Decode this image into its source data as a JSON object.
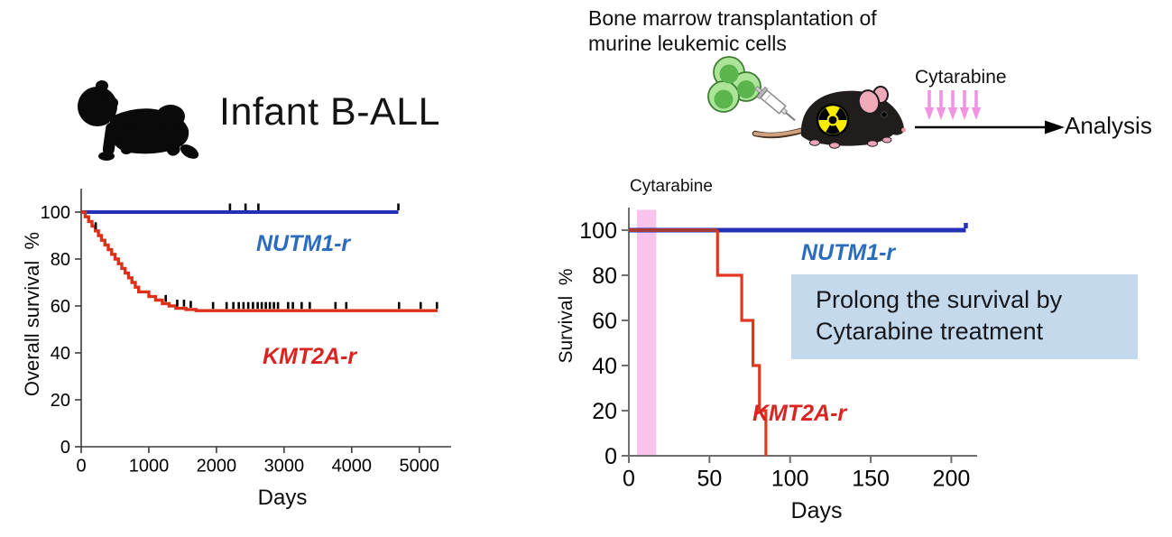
{
  "left_panel": {
    "icon": "baby-icon",
    "title": "Infant B-ALL"
  },
  "right_panel": {
    "heading_line1": "Bone marrow transplantation of",
    "heading_line2": "murine leukemic cells",
    "illustration": {
      "cells_icon": "leukemic-cells-icon",
      "syringe_icon": "syringe-icon",
      "mouse_icon": "mouse-icon",
      "radiation_icon": "radiation-hazard-icon",
      "colors": {
        "cell_outer": "#ace598",
        "cell_nucleus": "#5cb44d",
        "cell_border": "#3f7d35",
        "mouse_body": "#221d1d",
        "ear_pink": "#f2aabb",
        "tail_tan": "#cfa17e",
        "radiation_yellow": "#f8ec00"
      }
    },
    "treatment_label": "Cytarabine",
    "treatment_arrow_color": "#f293e2",
    "analysis_label": "Analysis",
    "callout": {
      "line1": "Prolong the survival by",
      "line2": "Cytarabine treatment",
      "bg": "#c5d9ed"
    }
  },
  "chart_data": [
    {
      "id": "infant-ball-overall-survival",
      "type": "line",
      "subtype": "kaplan-meier-step",
      "title": "Infant B-ALL overall survival",
      "xlabel": "Days",
      "ylabel": "Overall survival  %",
      "xlim": [
        0,
        5470
      ],
      "ylim": [
        0,
        110
      ],
      "xticks": [
        0,
        1000,
        2000,
        3000,
        4000,
        5000
      ],
      "yticks": [
        0,
        20,
        40,
        60,
        80,
        100
      ],
      "grid": false,
      "legend": "inline-annotations",
      "series": [
        {
          "name": "NUTM1-r",
          "color": "#2430b6",
          "line_width": 4,
          "start": [
            0,
            100
          ],
          "drops": [],
          "end_day": 4690,
          "censor_days": [
            2200,
            2430,
            2620,
            4690
          ]
        },
        {
          "name": "KMT2A-r",
          "color": "#dc3018",
          "line_width": 3.4,
          "start": [
            0,
            100
          ],
          "drops": [
            [
              60,
              98
            ],
            [
              110,
              96
            ],
            [
              160,
              94
            ],
            [
              210,
              92
            ],
            [
              255,
              90
            ],
            [
              300,
              88
            ],
            [
              350,
              86
            ],
            [
              400,
              84
            ],
            [
              450,
              82
            ],
            [
              500,
              80
            ],
            [
              550,
              78
            ],
            [
              600,
              76
            ],
            [
              650,
              74
            ],
            [
              700,
              72
            ],
            [
              750,
              70
            ],
            [
              800,
              68
            ],
            [
              850,
              66
            ],
            [
              1000,
              64
            ],
            [
              1100,
              62.5
            ],
            [
              1200,
              61
            ],
            [
              1300,
              60
            ],
            [
              1400,
              59
            ],
            [
              1550,
              58.5
            ],
            [
              1700,
              58
            ]
          ],
          "end_day": 5270,
          "censor_days": [
            215,
            1250,
            1420,
            1520,
            1620,
            1950,
            2150,
            2250,
            2330,
            2400,
            2470,
            2540,
            2610,
            2670,
            2730,
            2790,
            2850,
            2910,
            3060,
            3130,
            3260,
            3380,
            3760,
            3920,
            4700,
            5020,
            5260
          ]
        }
      ],
      "annotations": [
        {
          "text": "NUTM1-r",
          "color": "#2b6cbd",
          "x_day": 2400,
          "y_pct": 88
        },
        {
          "text": "KMT2A-r",
          "color": "#d92422",
          "x_day": 2500,
          "y_pct": 42
        }
      ]
    },
    {
      "id": "murine-bmt-survival",
      "type": "line",
      "subtype": "kaplan-meier-step",
      "title": "Murine transplant survival with Cytarabine",
      "xlabel": "Days",
      "ylabel": "Survival  %",
      "xlim": [
        0,
        216
      ],
      "ylim": [
        0,
        110
      ],
      "xticks": [
        0,
        50,
        100,
        150,
        200
      ],
      "yticks": [
        0,
        20,
        40,
        60,
        80,
        100
      ],
      "grid": false,
      "legend": "inline-annotations",
      "band": {
        "label": "Cytarabine",
        "x0": 5,
        "x1": 17,
        "top_pct": 109,
        "color": "#f8c4ec"
      },
      "series": [
        {
          "name": "NUTM1-r",
          "color": "#2430b6",
          "line_width": 5,
          "start": [
            0,
            100
          ],
          "drops": [],
          "end_day": 209,
          "censor_days": [
            209
          ],
          "censor_color": "#2430b6",
          "censor_width": 4.5,
          "censor_len": 8
        },
        {
          "name": "KMT2A-r-overlap-segment",
          "color": "#a33b3b",
          "line_width": 4,
          "start": [
            0,
            100
          ],
          "drops": [],
          "end_day": 55,
          "censor_days": []
        },
        {
          "name": "KMT2A-r",
          "color": "#e0381f",
          "line_width": 3.2,
          "start": [
            55,
            100
          ],
          "drops": [
            [
              55,
              80
            ],
            [
              70,
              60
            ],
            [
              77,
              40
            ],
            [
              81,
              20
            ],
            [
              85,
              0
            ]
          ],
          "end_day": 85,
          "censor_days": []
        }
      ],
      "annotations": [
        {
          "text": "NUTM1-r",
          "color": "#2b6cbd",
          "x_day": 115,
          "y_pct": 90
        },
        {
          "text": "KMT2A-r",
          "color": "#d92422",
          "x_day": 88,
          "y_pct": 18
        }
      ]
    }
  ]
}
